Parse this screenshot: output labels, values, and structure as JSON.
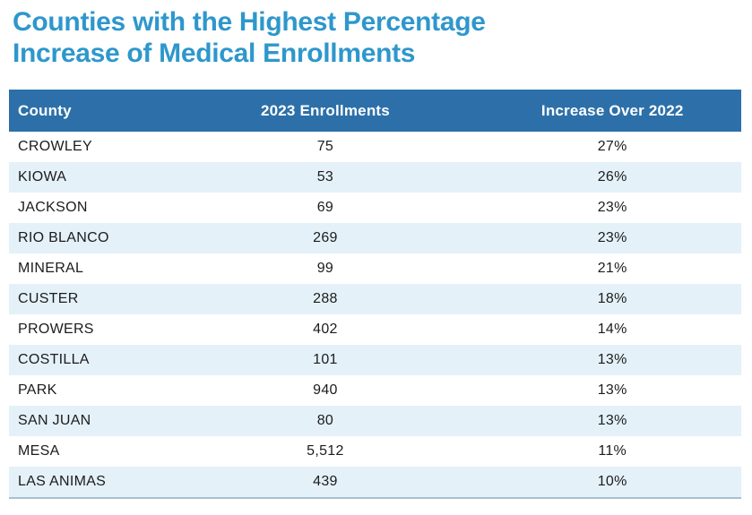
{
  "title_lines": [
    "Counties with the Highest Percentage",
    "Increase of Medical Enrollments"
  ],
  "colors": {
    "title_text": "#2e97cc",
    "header_bg": "#2d70a9",
    "header_text": "#ffffff",
    "row_bg": "#ffffff",
    "row_alt_bg": "#e4f1f9",
    "body_text": "#1c1c1c",
    "table_bottom_border": "#a9c0cf"
  },
  "chart_data": {
    "type": "table",
    "title": "Counties with the Highest Percentage Increase of Medical Enrollments",
    "columns": [
      "County",
      "2023 Enrollments",
      "Increase Over 2022"
    ],
    "rows": [
      [
        "CROWLEY",
        "75",
        "27%"
      ],
      [
        "KIOWA",
        "53",
        "26%"
      ],
      [
        "JACKSON",
        "69",
        "23%"
      ],
      [
        "RIO BLANCO",
        "269",
        "23%"
      ],
      [
        "MINERAL",
        "99",
        "21%"
      ],
      [
        "CUSTER",
        "288",
        "18%"
      ],
      [
        "PROWERS",
        "402",
        "14%"
      ],
      [
        "COSTILLA",
        "101",
        "13%"
      ],
      [
        "PARK",
        "940",
        "13%"
      ],
      [
        "SAN JUAN",
        "80",
        "13%"
      ],
      [
        "MESA",
        "5,512",
        "11%"
      ],
      [
        "LAS ANIMAS",
        "439",
        "10%"
      ]
    ]
  }
}
